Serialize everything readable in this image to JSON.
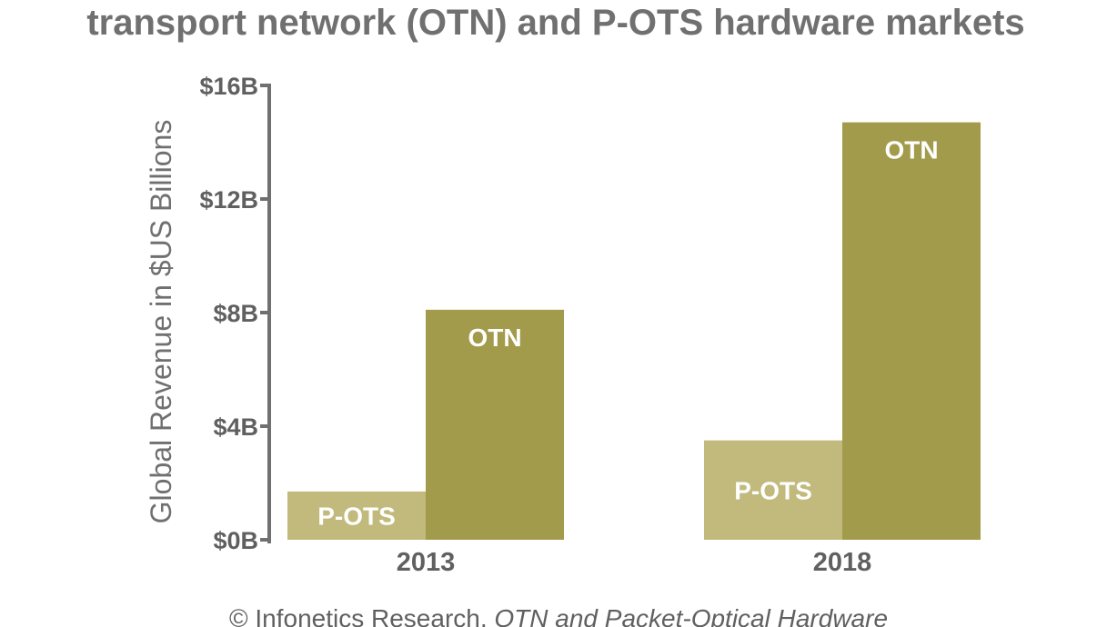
{
  "chart_data": {
    "type": "bar",
    "title": "transport network (OTN) and P-OTS hardware markets",
    "ylabel": "Global Revenue in $US Billions",
    "xlabel": "",
    "categories": [
      "2013",
      "2018"
    ],
    "ylim": [
      0,
      16
    ],
    "yticks": [
      0,
      4,
      8,
      12,
      16
    ],
    "ytick_labels": [
      "$0B",
      "$4B",
      "$8B",
      "$12B",
      "$16B"
    ],
    "series": [
      {
        "name": "P-OTS",
        "values": [
          1.7,
          3.5
        ],
        "color": "#c1ba7c",
        "bar_labels": [
          "P-OTS",
          "P-OTS"
        ]
      },
      {
        "name": "OTN",
        "values": [
          8.1,
          14.7
        ],
        "color": "#a39b4c",
        "bar_labels": [
          "OTN",
          "OTN"
        ]
      }
    ],
    "grid": false,
    "legend": "none",
    "source_prefix": "© Infonetics Research, ",
    "source_italic": "OTN and Packet-Optical Hardware"
  },
  "colors": {
    "axis": "#707070",
    "text": "#606060"
  }
}
